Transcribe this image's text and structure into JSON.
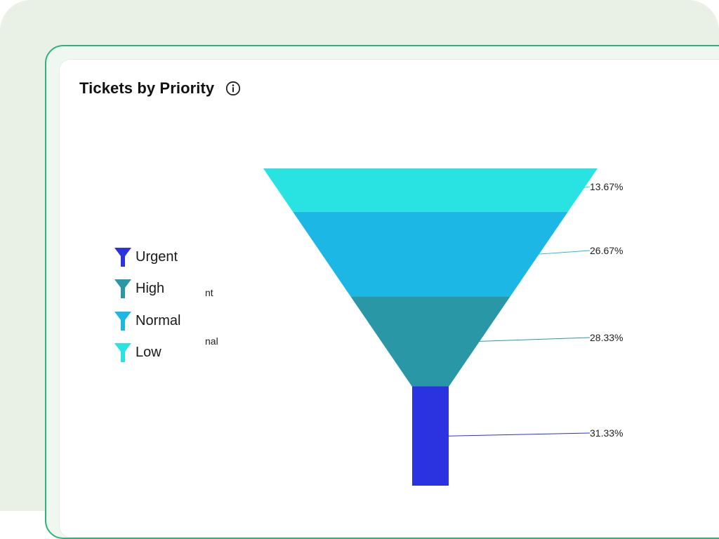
{
  "card": {
    "title": "Tickets by Priority",
    "info_icon": "info-circle-icon"
  },
  "legend_fragments": [
    "nt",
    "nal"
  ],
  "legend": [
    {
      "label": "Urgent",
      "color": "#2b32e0",
      "icon": "funnel-icon"
    },
    {
      "label": "High",
      "color": "#2a97a6",
      "icon": "funnel-icon"
    },
    {
      "label": "Normal",
      "color": "#1db7e6",
      "icon": "funnel-icon"
    },
    {
      "label": "Low",
      "color": "#29e3e3",
      "icon": "funnel-icon"
    }
  ],
  "chart_data": {
    "type": "funnel",
    "title": "Tickets by Priority",
    "stages": [
      {
        "name": "Low",
        "percent": 13.67,
        "label": "13.67%",
        "color": "#29e3e3"
      },
      {
        "name": "Normal",
        "percent": 26.67,
        "label": "26.67%",
        "color": "#1db7e6"
      },
      {
        "name": "High",
        "percent": 28.33,
        "label": "28.33%",
        "color": "#2a97a6"
      },
      {
        "name": "Urgent",
        "percent": 31.33,
        "label": "31.33%",
        "color": "#2b32e0"
      }
    ],
    "legend_position": "left"
  }
}
